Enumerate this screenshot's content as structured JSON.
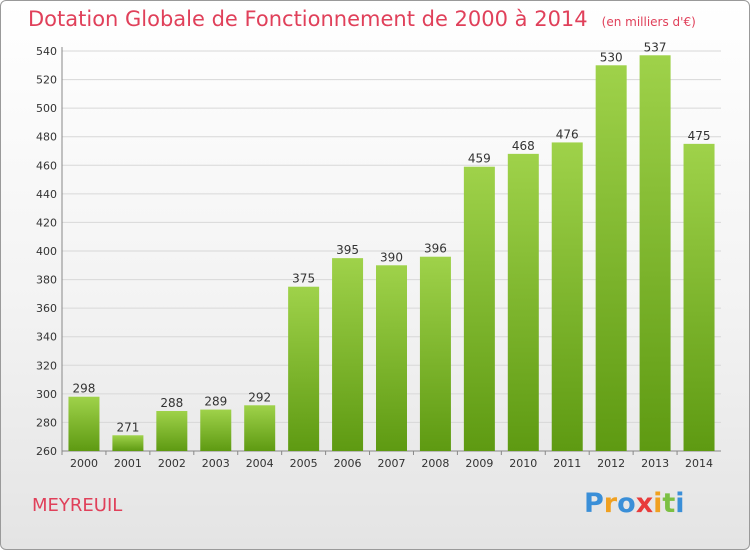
{
  "title": "Dotation Globale de Fonctionnement de 2000 à 2014",
  "subtitle": "(en milliers d'€)",
  "commune": "MEYREUIL",
  "logo": {
    "letters": [
      "P",
      "r",
      "o",
      "x",
      "i",
      "t",
      "i"
    ],
    "colors": [
      "#3a8fd8",
      "#f0a020",
      "#3a8fd8",
      "#e83b3b",
      "#f0a020",
      "#7cc043",
      "#3a8fd8"
    ]
  },
  "colors": {
    "title": "#e0405a",
    "bar_top": "#9fd24a",
    "bar_bottom": "#5e9a12",
    "grid": "#d8d8d8",
    "axis_text": "#333333"
  },
  "chart_data": {
    "type": "bar",
    "title": "Dotation Globale de Fonctionnement de 2000 à 2014",
    "subtitle": "(en milliers d'€)",
    "categories": [
      "2000",
      "2001",
      "2002",
      "2003",
      "2004",
      "2005",
      "2006",
      "2007",
      "2008",
      "2009",
      "2010",
      "2011",
      "2012",
      "2013",
      "2014"
    ],
    "values": [
      298,
      271,
      288,
      289,
      292,
      375,
      395,
      390,
      396,
      459,
      468,
      476,
      530,
      537,
      475
    ],
    "ylim": [
      260,
      540
    ],
    "yticks": [
      260,
      280,
      300,
      320,
      340,
      360,
      380,
      400,
      420,
      440,
      460,
      480,
      500,
      520,
      540
    ],
    "grid": true,
    "xlabel": "",
    "ylabel": ""
  }
}
